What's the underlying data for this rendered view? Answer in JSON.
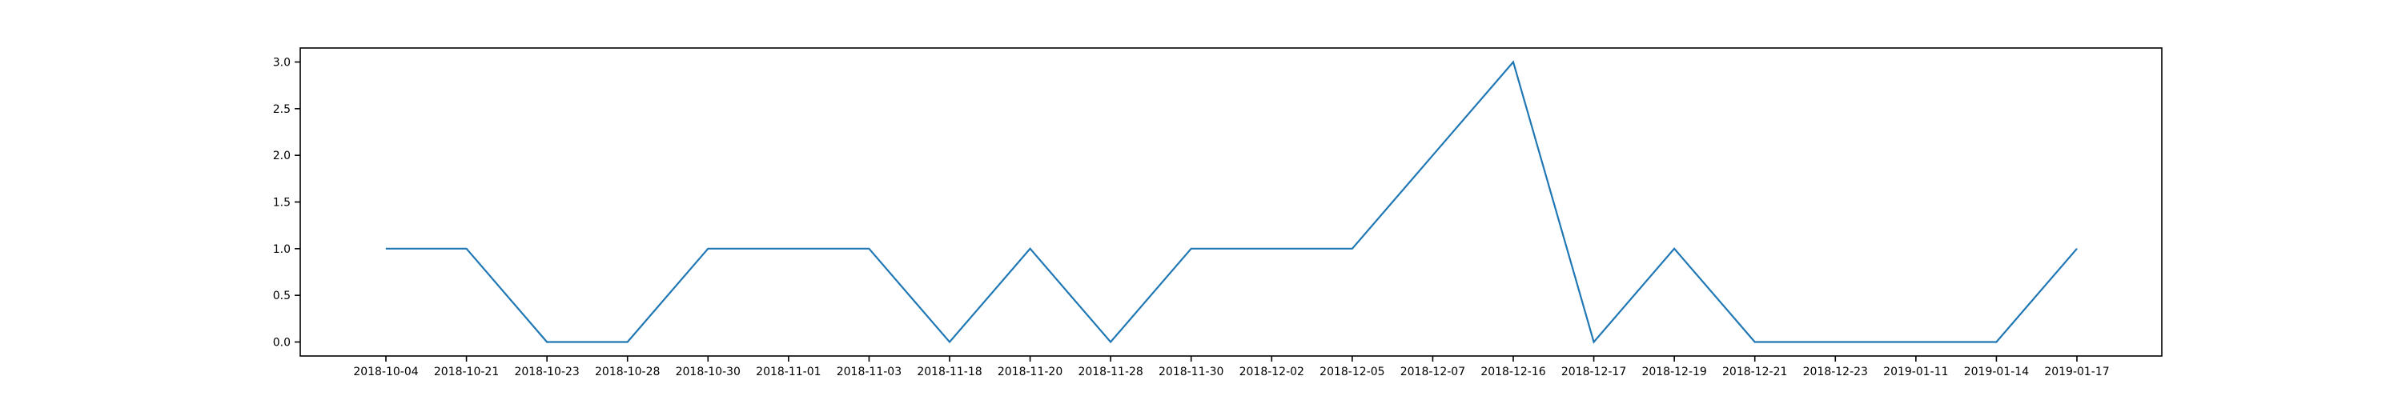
{
  "chart_data": {
    "type": "line",
    "title": "",
    "xlabel": "",
    "ylabel": "",
    "categories": [
      "2018-10-04",
      "2018-10-21",
      "2018-10-23",
      "2018-10-28",
      "2018-10-30",
      "2018-11-01",
      "2018-11-03",
      "2018-11-18",
      "2018-11-20",
      "2018-11-28",
      "2018-11-30",
      "2018-12-02",
      "2018-12-05",
      "2018-12-07",
      "2018-12-16",
      "2018-12-17",
      "2018-12-19",
      "2018-12-21",
      "2018-12-23",
      "2019-01-11",
      "2019-01-14",
      "2019-01-17"
    ],
    "series": [
      {
        "values": [
          1,
          1,
          0,
          0,
          1,
          1,
          1,
          0,
          1,
          0,
          1,
          1,
          1,
          2,
          3,
          0,
          1,
          0,
          0,
          0,
          0,
          1
        ]
      }
    ],
    "ylim": [
      -0.15,
      3.15
    ],
    "yticks": [
      0.0,
      0.5,
      1.0,
      1.5,
      2.0,
      2.5,
      3.0
    ],
    "ytick_labels": [
      "0.0",
      "0.5",
      "1.0",
      "1.5",
      "2.0",
      "2.5",
      "3.0"
    ],
    "grid": false,
    "legend": "none",
    "colors": {
      "line": "#1f77b4",
      "axes": "#000000"
    }
  }
}
